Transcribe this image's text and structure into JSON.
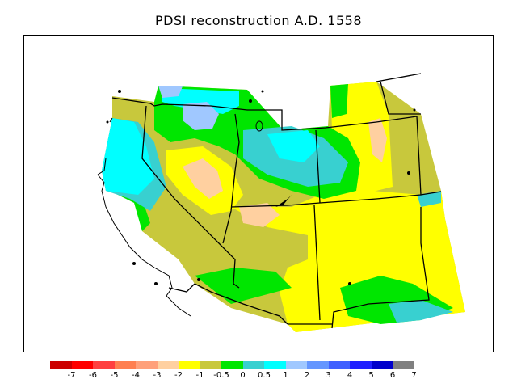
{
  "title": "PDSI reconstruction A.D. 1558",
  "legend": {
    "colors": [
      "#cc0000",
      "#ff0000",
      "#ff4040",
      "#ff7f50",
      "#ffa07a",
      "#ffd0a0",
      "#ffff00",
      "#c8c83c",
      "#00e600",
      "#38d0d0",
      "#00ffff",
      "#a0c8ff",
      "#6496ff",
      "#4060ff",
      "#2020ff",
      "#0000cc",
      "#808080"
    ],
    "ticks": [
      "-7",
      "-6",
      "-5",
      "-4",
      "-3",
      "-2",
      "-1",
      "-0.5",
      "0",
      "0.5",
      "1",
      "2",
      "3",
      "4",
      "5",
      "6",
      "7"
    ]
  },
  "map": {
    "field_colors": {
      "dry_moderate": "#ffff00",
      "dry_slight": "#c8c83c",
      "dry_severe": "#ffd0a0",
      "wet_slight": "#00e600",
      "wet_moderate": "#38d0d0",
      "wet_strong": "#00ffff",
      "wet_very": "#a0c8ff"
    },
    "boundary_color": "#000000"
  }
}
